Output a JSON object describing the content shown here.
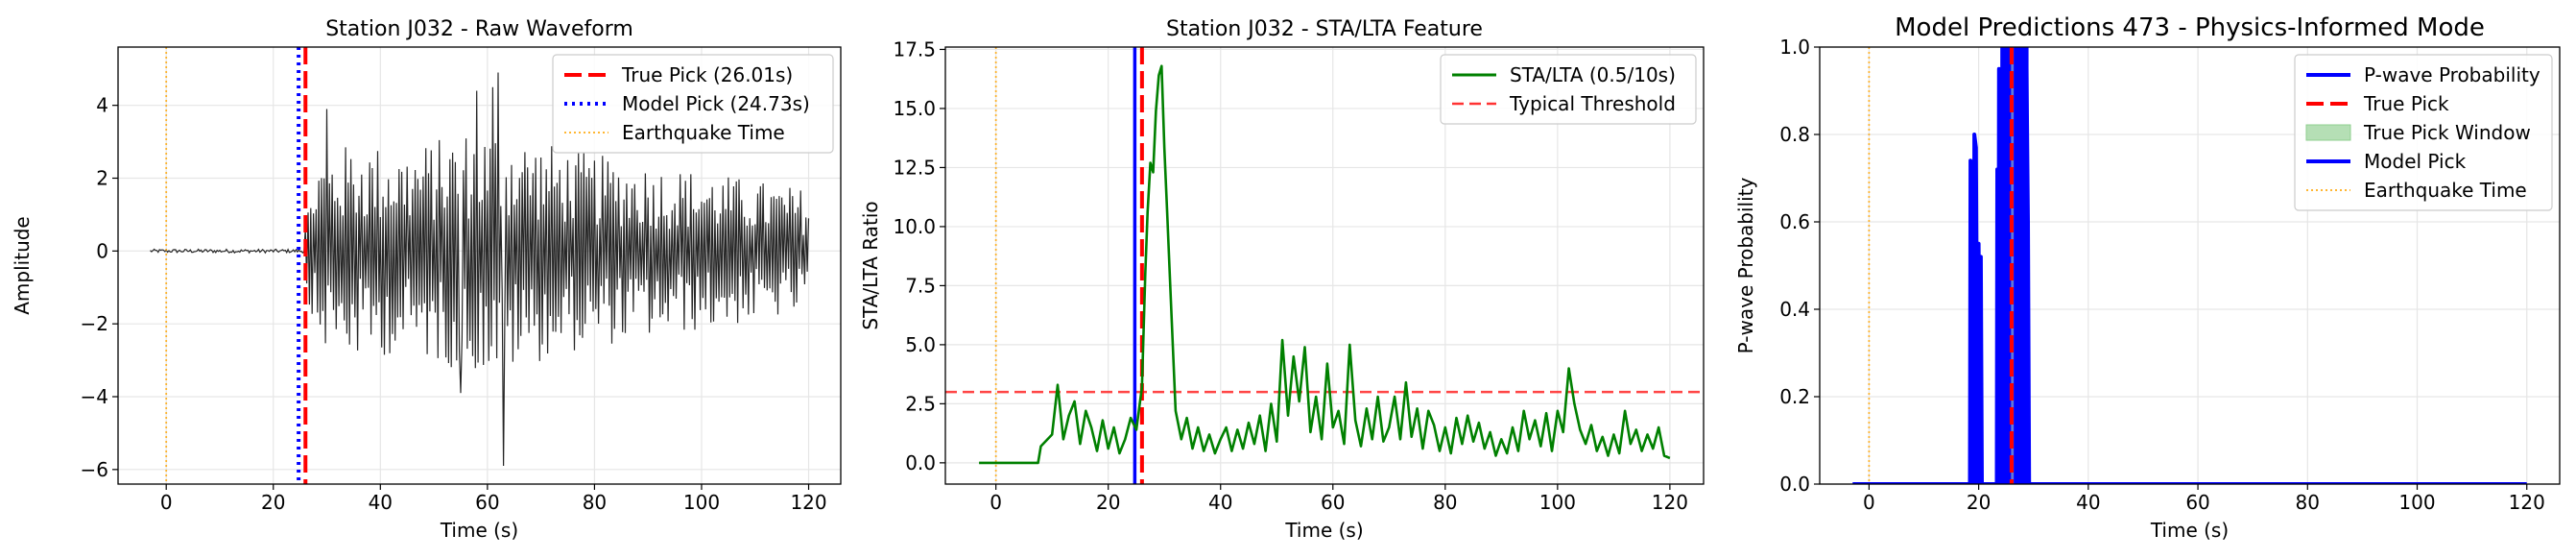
{
  "colors": {
    "waveform": "#262626",
    "true_pick": "#ff0000",
    "model_pick": "#0000ff",
    "earthquake": "#ffa500",
    "sta_lta": "#008000",
    "threshold": "#ff3333",
    "probability": "#0000ff",
    "window_fill": "#b5dfb5",
    "grid": "#e6e6e6"
  },
  "chart_data": [
    {
      "type": "line",
      "title": "Station J032 - Raw Waveform",
      "xlabel": "Time (s)",
      "ylabel": "Amplitude",
      "xlim": [
        -9,
        126
      ],
      "ylim": [
        -6.4,
        5.6
      ],
      "xticks": [
        0,
        20,
        40,
        60,
        80,
        100,
        120
      ],
      "yticks": [
        -6,
        -4,
        -2,
        0,
        2,
        4
      ],
      "grid": true,
      "legend": "top-right",
      "legend_entries": [
        "True Pick (26.01s)",
        "Model Pick (24.73s)",
        "Earthquake Time"
      ],
      "series": [
        {
          "kind": "waveform",
          "x_start": -3,
          "x_end": 120,
          "noise_amplitude": 0.05,
          "onset_time": 26,
          "envelope": [
            [
              26,
              0.8
            ],
            [
              28,
              2.6
            ],
            [
              35,
              3.0
            ],
            [
              45,
              2.8
            ],
            [
              55,
              3.3
            ],
            [
              62,
              3.4
            ],
            [
              75,
              2.8
            ],
            [
              90,
              2.4
            ],
            [
              100,
              2.2
            ],
            [
              120,
              1.7
            ]
          ],
          "peaks": [
            [
              58,
              4.4
            ],
            [
              61,
              4.5
            ],
            [
              62,
              4.9
            ],
            [
              63,
              -5.9
            ],
            [
              55,
              -3.9
            ],
            [
              30,
              3.9
            ]
          ]
        }
      ],
      "vlines": [
        {
          "name": "True Pick (26.01s)",
          "x": 26.01,
          "style": "dashed",
          "color": "#ff0000"
        },
        {
          "name": "Model Pick (24.73s)",
          "x": 24.73,
          "style": "dotted",
          "color": "#0000ff"
        },
        {
          "name": "Earthquake Time",
          "x": 0,
          "style": "dotted-thin",
          "color": "#ffa500"
        }
      ]
    },
    {
      "type": "line",
      "title": "Station J032 - STA/LTA Feature",
      "xlabel": "Time (s)",
      "ylabel": "STA/LTA Ratio",
      "xlim": [
        -9,
        126
      ],
      "ylim": [
        -0.9,
        17.6
      ],
      "xticks": [
        0,
        20,
        40,
        60,
        80,
        100,
        120
      ],
      "yticks": [
        0.0,
        2.5,
        5.0,
        7.5,
        10.0,
        12.5,
        15.0,
        17.5
      ],
      "ytick_labels": [
        "0.0",
        "2.5",
        "5.0",
        "7.5",
        "10.0",
        "12.5",
        "15.0",
        "17.5"
      ],
      "grid": true,
      "legend": "top-right",
      "legend_entries": [
        "STA/LTA (0.5/10s)",
        "Typical Threshold"
      ],
      "series": [
        {
          "name": "STA/LTA (0.5/10s)",
          "kind": "ratio",
          "points": [
            [
              -3,
              0
            ],
            [
              7.5,
              0
            ],
            [
              8,
              0.7
            ],
            [
              10,
              1.2
            ],
            [
              11,
              3.3
            ],
            [
              12,
              1.0
            ],
            [
              13,
              2.0
            ],
            [
              14,
              2.6
            ],
            [
              15,
              0.8
            ],
            [
              16,
              2.2
            ],
            [
              17,
              1.5
            ],
            [
              18,
              0.5
            ],
            [
              19,
              1.8
            ],
            [
              20,
              0.6
            ],
            [
              21,
              1.5
            ],
            [
              22,
              0.4
            ],
            [
              23,
              1.0
            ],
            [
              24,
              1.9
            ],
            [
              25,
              1.4
            ],
            [
              26,
              3.2
            ],
            [
              26.6,
              8.0
            ],
            [
              27,
              10.6
            ],
            [
              27.5,
              12.7
            ],
            [
              28,
              12.3
            ],
            [
              28.5,
              14.9
            ],
            [
              29,
              16.4
            ],
            [
              29.5,
              16.8
            ],
            [
              30,
              13.3
            ],
            [
              30.5,
              10.6
            ],
            [
              31,
              7.7
            ],
            [
              32,
              2.2
            ],
            [
              33,
              1.0
            ],
            [
              34,
              1.9
            ],
            [
              35,
              0.6
            ],
            [
              36,
              1.5
            ],
            [
              37,
              0.5
            ],
            [
              38,
              1.2
            ],
            [
              39,
              0.4
            ],
            [
              40,
              1.0
            ],
            [
              41,
              1.5
            ],
            [
              42,
              0.5
            ],
            [
              43,
              1.4
            ],
            [
              44,
              0.6
            ],
            [
              45,
              1.7
            ],
            [
              46,
              0.8
            ],
            [
              47,
              2.0
            ],
            [
              48,
              0.5
            ],
            [
              49,
              2.5
            ],
            [
              50,
              0.9
            ],
            [
              51,
              5.2
            ],
            [
              52,
              2.0
            ],
            [
              53,
              4.5
            ],
            [
              54,
              2.6
            ],
            [
              55,
              4.9
            ],
            [
              56,
              1.3
            ],
            [
              57,
              2.8
            ],
            [
              58,
              1.0
            ],
            [
              59,
              4.2
            ],
            [
              60,
              1.5
            ],
            [
              61,
              2.2
            ],
            [
              62,
              0.8
            ],
            [
              63,
              5.0
            ],
            [
              64,
              1.8
            ],
            [
              65,
              0.7
            ],
            [
              66,
              2.3
            ],
            [
              67,
              1.0
            ],
            [
              68,
              2.8
            ],
            [
              69,
              0.9
            ],
            [
              70,
              1.5
            ],
            [
              71,
              2.8
            ],
            [
              72,
              1.0
            ],
            [
              73,
              3.4
            ],
            [
              74,
              1.1
            ],
            [
              75,
              2.3
            ],
            [
              76,
              0.6
            ],
            [
              77,
              2.2
            ],
            [
              78,
              1.6
            ],
            [
              79,
              0.5
            ],
            [
              80,
              1.5
            ],
            [
              81,
              0.4
            ],
            [
              82,
              1.9
            ],
            [
              83,
              0.8
            ],
            [
              84,
              2.0
            ],
            [
              85,
              0.9
            ],
            [
              86,
              1.7
            ],
            [
              87,
              0.6
            ],
            [
              88,
              1.3
            ],
            [
              89,
              0.3
            ],
            [
              90,
              1.0
            ],
            [
              91,
              0.4
            ],
            [
              92,
              1.5
            ],
            [
              93,
              0.5
            ],
            [
              94,
              2.2
            ],
            [
              95,
              1.0
            ],
            [
              96,
              1.8
            ],
            [
              97,
              0.7
            ],
            [
              98,
              2.1
            ],
            [
              99,
              0.5
            ],
            [
              100,
              2.2
            ],
            [
              101,
              1.3
            ],
            [
              102,
              4.0
            ],
            [
              103,
              2.5
            ],
            [
              104,
              1.4
            ],
            [
              105,
              0.8
            ],
            [
              106,
              1.6
            ],
            [
              107,
              0.5
            ],
            [
              108,
              1.1
            ],
            [
              109,
              0.3
            ],
            [
              110,
              1.2
            ],
            [
              111,
              0.4
            ],
            [
              112,
              2.2
            ],
            [
              113,
              0.8
            ],
            [
              114,
              1.4
            ],
            [
              115,
              0.5
            ],
            [
              116,
              1.2
            ],
            [
              117,
              0.6
            ],
            [
              118,
              1.5
            ],
            [
              119,
              0.3
            ],
            [
              120,
              0.2
            ]
          ]
        }
      ],
      "hlines": [
        {
          "name": "Typical Threshold",
          "y": 3.0,
          "style": "dashed",
          "color": "#ff3333"
        }
      ],
      "vlines": [
        {
          "name": "model-pick",
          "x": 24.73,
          "style": "solid",
          "color": "#0000ff"
        },
        {
          "name": "true-pick",
          "x": 26.01,
          "style": "dashed",
          "color": "#ff0000"
        },
        {
          "name": "earthquake-time",
          "x": 0,
          "style": "dotted-thin",
          "color": "#ffa500"
        }
      ]
    },
    {
      "type": "line",
      "title": "Model Predictions 473 - Physics-Informed Mode",
      "xlabel": "Time (s)",
      "ylabel": "P-wave Probability",
      "xlim": [
        -9,
        126
      ],
      "ylim": [
        0.0,
        1.0
      ],
      "xticks": [
        0,
        20,
        40,
        60,
        80,
        100,
        120
      ],
      "yticks": [
        0.0,
        0.2,
        0.4,
        0.6,
        0.8,
        1.0
      ],
      "ytick_labels": [
        "0.0",
        "0.2",
        "0.4",
        "0.6",
        "0.8",
        "1.0"
      ],
      "grid": true,
      "legend": "top-right",
      "legend_entries": [
        "P-wave Probability",
        "True Pick",
        "True Pick Window",
        "Model Pick",
        "Earthquake Time"
      ],
      "series": [
        {
          "name": "P-wave Probability",
          "points": [
            [
              -3,
              0
            ],
            [
              18.4,
              0
            ],
            [
              18.5,
              0.74
            ],
            [
              18.8,
              0.7
            ],
            [
              19.1,
              0
            ],
            [
              19.2,
              0.8
            ],
            [
              19.5,
              0.77
            ],
            [
              19.8,
              0
            ],
            [
              20.0,
              0.55
            ],
            [
              20.3,
              0
            ],
            [
              20.4,
              0.52
            ],
            [
              20.6,
              0
            ],
            [
              23.3,
              0
            ],
            [
              23.4,
              0.72
            ],
            [
              23.6,
              0
            ],
            [
              23.7,
              0.95
            ],
            [
              24.0,
              0.75
            ],
            [
              24.2,
              0
            ],
            [
              24.3,
              1.0
            ],
            [
              24.6,
              0.9
            ],
            [
              24.8,
              1.0
            ],
            [
              25.0,
              1.0
            ],
            [
              25.2,
              1.0
            ],
            [
              25.4,
              1.0
            ],
            [
              25.6,
              1.0
            ],
            [
              25.8,
              1.0
            ],
            [
              26.0,
              1.0
            ],
            [
              26.3,
              1.0
            ],
            [
              26.6,
              1.0
            ],
            [
              27.0,
              0.9
            ],
            [
              27.3,
              1.0
            ],
            [
              27.6,
              1.0
            ],
            [
              28.0,
              1.0
            ],
            [
              28.4,
              1.0
            ],
            [
              28.7,
              1.0
            ],
            [
              29.0,
              0.6
            ],
            [
              29.2,
              0
            ],
            [
              120,
              0
            ]
          ]
        }
      ],
      "window": {
        "name": "True Pick Window",
        "x0": 25.2,
        "x1": 27.1
      },
      "vlines": [
        {
          "name": "True Pick",
          "x": 26.01,
          "style": "dashed",
          "color": "#ff0000"
        },
        {
          "name": "Model Pick",
          "x": 24.73,
          "style": "solid",
          "color": "#0000ff"
        },
        {
          "name": "Earthquake Time",
          "x": 0,
          "style": "dotted-thin",
          "color": "#ffa500"
        }
      ]
    }
  ]
}
